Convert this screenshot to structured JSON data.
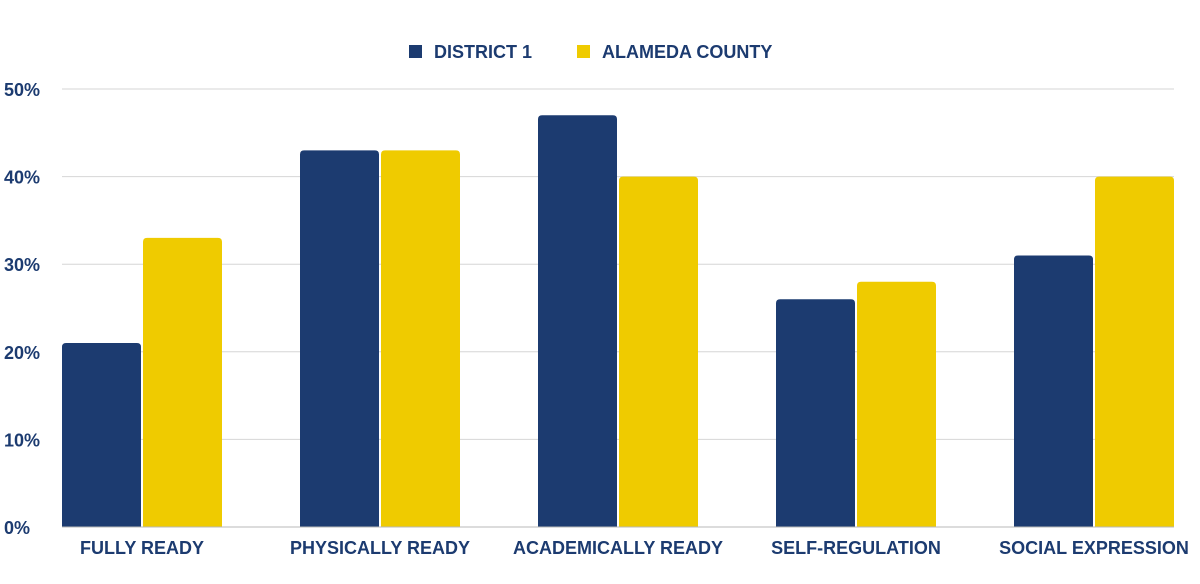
{
  "chart_data": {
    "type": "bar",
    "categories": [
      "FULLY READY",
      "PHYSICALLY READY",
      "ACADEMICALLY READY",
      "SELF-REGULATION",
      "SOCIAL EXPRESSION"
    ],
    "series": [
      {
        "name": "DISTRICT 1",
        "values": [
          21,
          43,
          47,
          26,
          31
        ],
        "color": "#1c3b70"
      },
      {
        "name": "ALAMEDA COUNTY",
        "values": [
          33,
          43,
          40,
          28,
          40
        ],
        "color": "#efcb00"
      }
    ],
    "ylim": [
      0,
      50
    ],
    "yticks": [
      "0%",
      "10%",
      "20%",
      "30%",
      "40%",
      "50%"
    ],
    "grid": true,
    "legend_position": "top-center",
    "label_color": "#1c3b70"
  }
}
